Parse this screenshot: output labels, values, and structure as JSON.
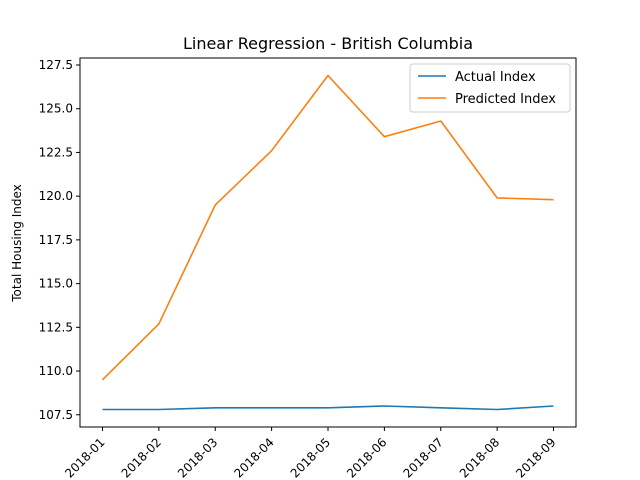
{
  "chart_data": {
    "type": "line",
    "title": "Linear Regression - British Columbia",
    "xlabel": "",
    "ylabel": "Total Housing Index",
    "categories": [
      "2018-01",
      "2018-02",
      "2018-03",
      "2018-04",
      "2018-05",
      "2018-06",
      "2018-07",
      "2018-08",
      "2018-09"
    ],
    "ylim": [
      106.8,
      127.9
    ],
    "yticks": [
      "107.5",
      "110.0",
      "112.5",
      "115.0",
      "117.5",
      "120.0",
      "122.5",
      "125.0",
      "127.5"
    ],
    "grid": false,
    "legend_position": "top-right",
    "series": [
      {
        "name": "Actual Index",
        "color": "#1f77b4",
        "values": [
          107.8,
          107.8,
          107.9,
          107.9,
          107.9,
          108.0,
          107.9,
          107.8,
          108.0
        ]
      },
      {
        "name": "Predicted Index",
        "color": "#ff7f0e",
        "values": [
          109.5,
          112.7,
          119.5,
          122.6,
          126.9,
          123.4,
          124.3,
          119.9,
          119.8
        ]
      }
    ]
  }
}
